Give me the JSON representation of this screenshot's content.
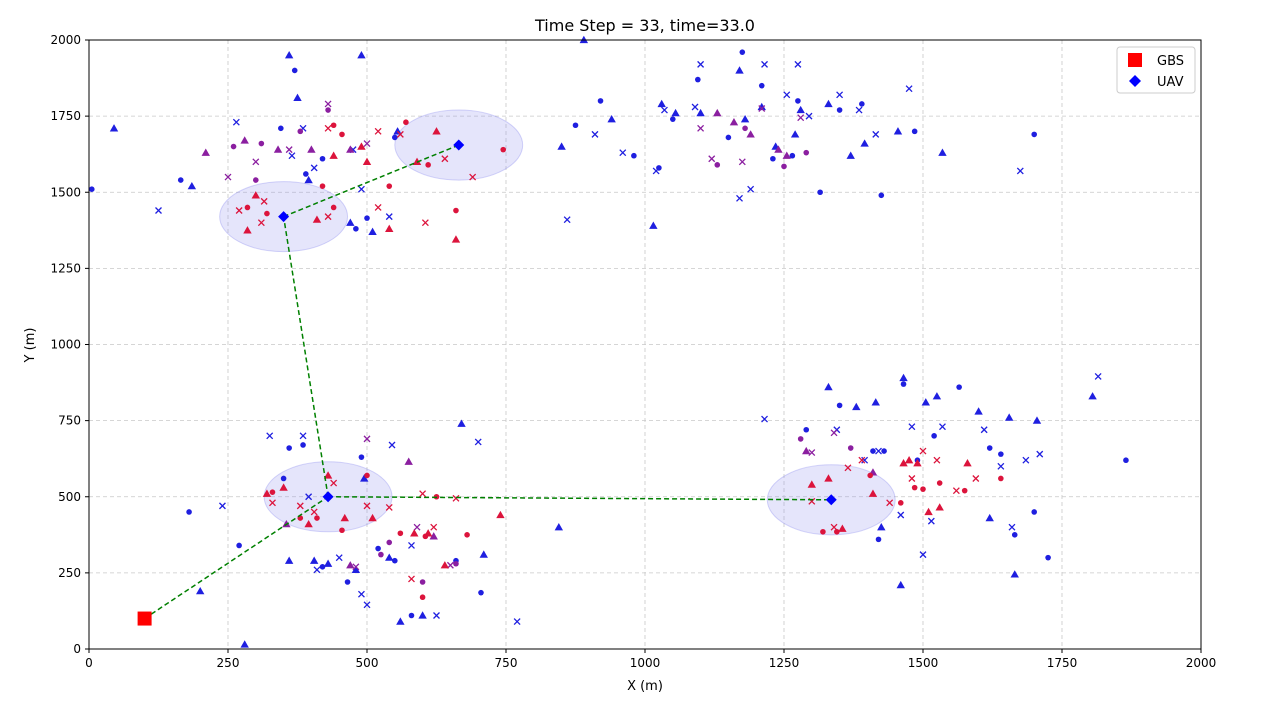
{
  "chart_data": {
    "type": "scatter",
    "title": "Time Step = 33, time=33.0",
    "xlabel": "X (m)",
    "ylabel": "Y (m)",
    "xlim": [
      0,
      2000
    ],
    "ylim": [
      0,
      2000
    ],
    "xticks": [
      0,
      250,
      500,
      750,
      1000,
      1250,
      1500,
      1750,
      2000
    ],
    "yticks": [
      0,
      250,
      500,
      750,
      1000,
      1250,
      1500,
      1750,
      2000
    ],
    "grid": true,
    "legend_position": "top-right",
    "legend": [
      {
        "label": "GBS",
        "marker": "square",
        "color": "#ff0000"
      },
      {
        "label": "UAV",
        "marker": "diamond",
        "color": "#0000ff"
      }
    ],
    "gbs": {
      "x": 100,
      "y": 100
    },
    "uavs": [
      {
        "x": 350,
        "y": 1420
      },
      {
        "x": 665,
        "y": 1655
      },
      {
        "x": 430,
        "y": 500
      },
      {
        "x": 1335,
        "y": 490
      }
    ],
    "coverage_radius_x": 115,
    "coverage_radius_y": 115,
    "links": [
      [
        [
          100,
          100
        ],
        [
          430,
          500
        ]
      ],
      [
        [
          430,
          500
        ],
        [
          350,
          1420
        ]
      ],
      [
        [
          350,
          1420
        ],
        [
          665,
          1655
        ]
      ],
      [
        [
          430,
          500
        ],
        [
          1335,
          490
        ]
      ]
    ],
    "colors": {
      "served": "#dc143c",
      "partial": "#8b1fa0",
      "unserved": "#1f1fe0",
      "link": "#008000",
      "coverage": "#8888ee"
    },
    "users_served": [
      [
        270,
        1440
      ],
      [
        285,
        1450
      ],
      [
        300,
        1490
      ],
      [
        315,
        1470
      ],
      [
        320,
        1430
      ],
      [
        285,
        1375
      ],
      [
        310,
        1400
      ],
      [
        420,
        1520
      ],
      [
        410,
        1410
      ],
      [
        430,
        1420
      ],
      [
        440,
        1450
      ],
      [
        440,
        1620
      ],
      [
        430,
        1710
      ],
      [
        455,
        1690
      ],
      [
        500,
        1600
      ],
      [
        520,
        1450
      ],
      [
        540,
        1520
      ],
      [
        540,
        1380
      ],
      [
        560,
        1690
      ],
      [
        570,
        1730
      ],
      [
        590,
        1600
      ],
      [
        605,
        1400
      ],
      [
        610,
        1590
      ],
      [
        625,
        1700
      ],
      [
        640,
        1610
      ],
      [
        660,
        1440
      ],
      [
        660,
        1345
      ],
      [
        690,
        1550
      ],
      [
        745,
        1640
      ],
      [
        490,
        1650
      ],
      [
        520,
        1700
      ],
      [
        440,
        1720
      ],
      [
        320,
        510
      ],
      [
        330,
        480
      ],
      [
        330,
        515
      ],
      [
        350,
        530
      ],
      [
        380,
        470
      ],
      [
        380,
        430
      ],
      [
        395,
        410
      ],
      [
        405,
        450
      ],
      [
        410,
        430
      ],
      [
        430,
        570
      ],
      [
        440,
        545
      ],
      [
        455,
        390
      ],
      [
        460,
        430
      ],
      [
        500,
        470
      ],
      [
        500,
        570
      ],
      [
        510,
        430
      ],
      [
        540,
        465
      ],
      [
        560,
        380
      ],
      [
        585,
        380
      ],
      [
        600,
        510
      ],
      [
        605,
        370
      ],
      [
        610,
        380
      ],
      [
        620,
        400
      ],
      [
        625,
        500
      ],
      [
        640,
        275
      ],
      [
        660,
        495
      ],
      [
        680,
        375
      ],
      [
        740,
        440
      ],
      [
        580,
        230
      ],
      [
        600,
        170
      ],
      [
        1300,
        540
      ],
      [
        1300,
        485
      ],
      [
        1320,
        385
      ],
      [
        1330,
        560
      ],
      [
        1340,
        400
      ],
      [
        1345,
        385
      ],
      [
        1355,
        395
      ],
      [
        1365,
        595
      ],
      [
        1405,
        570
      ],
      [
        1410,
        510
      ],
      [
        1440,
        480
      ],
      [
        1460,
        480
      ],
      [
        1475,
        620
      ],
      [
        1480,
        560
      ],
      [
        1485,
        530
      ],
      [
        1490,
        610
      ],
      [
        1500,
        650
      ],
      [
        1500,
        525
      ],
      [
        1510,
        450
      ],
      [
        1525,
        620
      ],
      [
        1530,
        545
      ],
      [
        1530,
        465
      ],
      [
        1560,
        520
      ],
      [
        1575,
        520
      ],
      [
        1580,
        610
      ],
      [
        1595,
        560
      ],
      [
        1640,
        560
      ],
      [
        1465,
        610
      ],
      [
        1390,
        620
      ]
    ],
    "users_partial": [
      [
        210,
        1630
      ],
      [
        250,
        1550
      ],
      [
        260,
        1650
      ],
      [
        280,
        1670
      ],
      [
        300,
        1600
      ],
      [
        310,
        1660
      ],
      [
        340,
        1640
      ],
      [
        360,
        1640
      ],
      [
        380,
        1700
      ],
      [
        400,
        1640
      ],
      [
        430,
        1790
      ],
      [
        430,
        1770
      ],
      [
        470,
        1640
      ],
      [
        500,
        1660
      ],
      [
        300,
        1540
      ],
      [
        355,
        410
      ],
      [
        500,
        690
      ],
      [
        540,
        350
      ],
      [
        575,
        615
      ],
      [
        590,
        400
      ],
      [
        600,
        220
      ],
      [
        620,
        370
      ],
      [
        650,
        275
      ],
      [
        660,
        280
      ],
      [
        470,
        275
      ],
      [
        480,
        270
      ],
      [
        525,
        310
      ],
      [
        1130,
        1760
      ],
      [
        1120,
        1610
      ],
      [
        1130,
        1590
      ],
      [
        1160,
        1730
      ],
      [
        1175,
        1600
      ],
      [
        1180,
        1710
      ],
      [
        1190,
        1690
      ],
      [
        1210,
        1775
      ],
      [
        1250,
        1585
      ],
      [
        1255,
        1620
      ],
      [
        1280,
        1745
      ],
      [
        1290,
        1630
      ],
      [
        1240,
        1640
      ],
      [
        1100,
        1710
      ],
      [
        1280,
        690
      ],
      [
        1290,
        650
      ],
      [
        1340,
        710
      ],
      [
        1370,
        660
      ],
      [
        1410,
        580
      ],
      [
        1300,
        645
      ]
    ],
    "users_unserved": [
      [
        5,
        1510
      ],
      [
        45,
        1710
      ],
      [
        125,
        1440
      ],
      [
        165,
        1540
      ],
      [
        185,
        1520
      ],
      [
        265,
        1730
      ],
      [
        345,
        1710
      ],
      [
        360,
        1950
      ],
      [
        365,
        1620
      ],
      [
        370,
        1900
      ],
      [
        375,
        1810
      ],
      [
        385,
        1710
      ],
      [
        390,
        1560
      ],
      [
        395,
        1540
      ],
      [
        405,
        1580
      ],
      [
        420,
        1610
      ],
      [
        470,
        1400
      ],
      [
        475,
        1640
      ],
      [
        480,
        1380
      ],
      [
        490,
        1950
      ],
      [
        490,
        1510
      ],
      [
        500,
        1415
      ],
      [
        510,
        1370
      ],
      [
        540,
        1420
      ],
      [
        550,
        1680
      ],
      [
        555,
        1700
      ],
      [
        240,
        470
      ],
      [
        270,
        340
      ],
      [
        280,
        15
      ],
      [
        325,
        700
      ],
      [
        360,
        660
      ],
      [
        360,
        290
      ],
      [
        385,
        700
      ],
      [
        385,
        670
      ],
      [
        405,
        290
      ],
      [
        410,
        260
      ],
      [
        420,
        270
      ],
      [
        430,
        280
      ],
      [
        450,
        300
      ],
      [
        465,
        220
      ],
      [
        480,
        260
      ],
      [
        490,
        180
      ],
      [
        490,
        630
      ],
      [
        495,
        560
      ],
      [
        500,
        145
      ],
      [
        520,
        330
      ],
      [
        540,
        300
      ],
      [
        545,
        670
      ],
      [
        550,
        290
      ],
      [
        560,
        90
      ],
      [
        580,
        340
      ],
      [
        580,
        110
      ],
      [
        600,
        110
      ],
      [
        625,
        110
      ],
      [
        660,
        290
      ],
      [
        670,
        740
      ],
      [
        700,
        680
      ],
      [
        705,
        185
      ],
      [
        710,
        310
      ],
      [
        770,
        90
      ],
      [
        180,
        450
      ],
      [
        200,
        190
      ],
      [
        395,
        500
      ],
      [
        350,
        560
      ],
      [
        850,
        1650
      ],
      [
        860,
        1410
      ],
      [
        875,
        1720
      ],
      [
        890,
        2000
      ],
      [
        910,
        1690
      ],
      [
        920,
        1800
      ],
      [
        940,
        1740
      ],
      [
        960,
        1630
      ],
      [
        980,
        1620
      ],
      [
        1015,
        1390
      ],
      [
        1020,
        1570
      ],
      [
        1025,
        1580
      ],
      [
        1030,
        1790
      ],
      [
        1035,
        1770
      ],
      [
        1050,
        1740
      ],
      [
        1055,
        1760
      ],
      [
        1090,
        1780
      ],
      [
        1095,
        1870
      ],
      [
        1100,
        1760
      ],
      [
        1100,
        1920
      ],
      [
        1150,
        1680
      ],
      [
        1170,
        1900
      ],
      [
        1170,
        1480
      ],
      [
        1175,
        1960
      ],
      [
        1180,
        1740
      ],
      [
        1190,
        1510
      ],
      [
        1210,
        1850
      ],
      [
        1210,
        1780
      ],
      [
        1215,
        1920
      ],
      [
        1230,
        1610
      ],
      [
        1235,
        1650
      ],
      [
        1255,
        1820
      ],
      [
        1265,
        1620
      ],
      [
        1270,
        1690
      ],
      [
        1275,
        1920
      ],
      [
        1275,
        1800
      ],
      [
        1280,
        1770
      ],
      [
        1295,
        1750
      ],
      [
        1315,
        1500
      ],
      [
        1330,
        1790
      ],
      [
        1350,
        1820
      ],
      [
        1350,
        1770
      ],
      [
        1370,
        1620
      ],
      [
        1385,
        1770
      ],
      [
        1390,
        1790
      ],
      [
        1395,
        1660
      ],
      [
        1415,
        1690
      ],
      [
        1425,
        1490
      ],
      [
        1455,
        1700
      ],
      [
        1475,
        1840
      ],
      [
        1485,
        1700
      ],
      [
        1535,
        1630
      ],
      [
        1675,
        1570
      ],
      [
        1700,
        1690
      ],
      [
        845,
        400
      ],
      [
        1215,
        755
      ],
      [
        1290,
        720
      ],
      [
        1330,
        860
      ],
      [
        1345,
        720
      ],
      [
        1350,
        800
      ],
      [
        1380,
        795
      ],
      [
        1395,
        620
      ],
      [
        1410,
        650
      ],
      [
        1415,
        810
      ],
      [
        1420,
        650
      ],
      [
        1420,
        360
      ],
      [
        1425,
        400
      ],
      [
        1460,
        440
      ],
      [
        1465,
        870
      ],
      [
        1465,
        890
      ],
      [
        1480,
        730
      ],
      [
        1490,
        620
      ],
      [
        1505,
        810
      ],
      [
        1515,
        420
      ],
      [
        1520,
        700
      ],
      [
        1525,
        830
      ],
      [
        1535,
        730
      ],
      [
        1565,
        860
      ],
      [
        1600,
        780
      ],
      [
        1610,
        720
      ],
      [
        1620,
        660
      ],
      [
        1620,
        430
      ],
      [
        1640,
        600
      ],
      [
        1640,
        640
      ],
      [
        1655,
        760
      ],
      [
        1660,
        400
      ],
      [
        1665,
        375
      ],
      [
        1665,
        245
      ],
      [
        1685,
        620
      ],
      [
        1700,
        450
      ],
      [
        1705,
        750
      ],
      [
        1710,
        640
      ],
      [
        1725,
        300
      ],
      [
        1805,
        830
      ],
      [
        1815,
        895
      ],
      [
        1865,
        620
      ],
      [
        1460,
        210
      ],
      [
        1500,
        310
      ],
      [
        1430,
        650
      ]
    ]
  }
}
